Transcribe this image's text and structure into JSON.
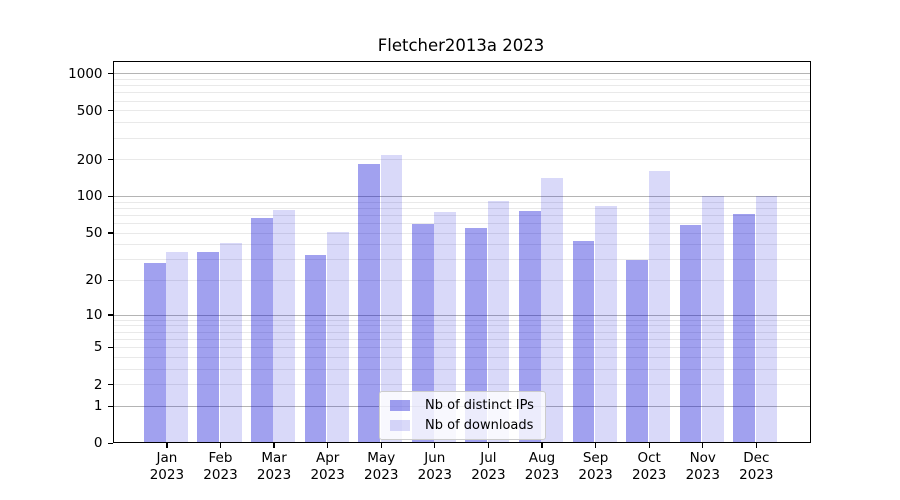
{
  "page": {
    "background": "#ffffff"
  },
  "chart_data": {
    "type": "bar",
    "title": "Fletcher2013a 2023",
    "year": "2023",
    "categories": [
      "Jan",
      "Feb",
      "Mar",
      "Apr",
      "May",
      "Jun",
      "Jul",
      "Aug",
      "Sep",
      "Oct",
      "Nov",
      "Dec"
    ],
    "series": [
      {
        "name": "Nb of distinct IPs",
        "color": "#a1a1ef",
        "rgba": "rgba(0,0,212,0.37)",
        "values": [
          28,
          35,
          67,
          33,
          185,
          59,
          55,
          76,
          43,
          30,
          58,
          72
        ]
      },
      {
        "name": "Nb of downloads",
        "color": "#d9d9f9",
        "rgba": "rgba(0,0,212,0.15)",
        "values": [
          35,
          41,
          78,
          51,
          218,
          75,
          91,
          142,
          84,
          162,
          100,
          100
        ]
      }
    ],
    "xlabel": "",
    "ylabel": "",
    "yscale": "log1p",
    "yticks": [
      0,
      1,
      2,
      5,
      10,
      20,
      50,
      100,
      200,
      500,
      1000
    ],
    "ylim": [
      0,
      1275
    ],
    "grid_major": [
      1,
      10,
      100,
      1000
    ],
    "grid": "on",
    "legend_position": "lower center"
  },
  "colors": {
    "axis": "#000000",
    "grid_major": "#b4b4b4",
    "grid_minor": "#e9e9e9",
    "legend_border": "#cccccc",
    "legend_bg": "rgba(255,255,255,0.8)"
  }
}
